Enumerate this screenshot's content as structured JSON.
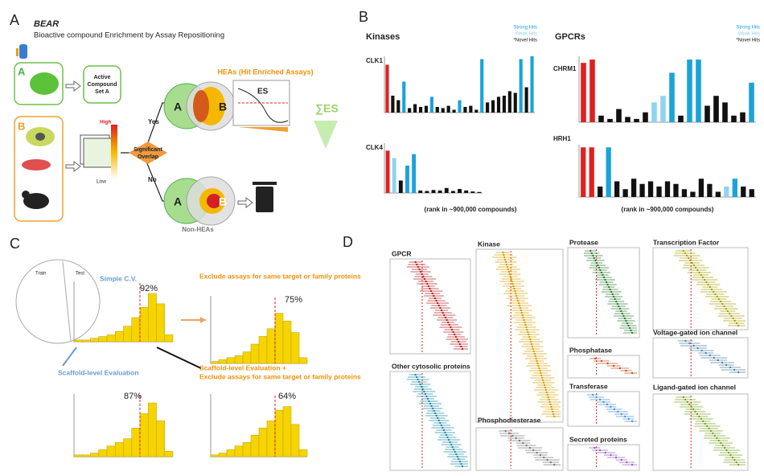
{
  "panels": {
    "a": {
      "label": "A",
      "logo": "BEAR",
      "subtitle": "Bioactive compound Enrichment by Assay Repositioning",
      "box_a": "A",
      "box_b": "B",
      "active_set": [
        "Active",
        "Compound",
        "Set A"
      ],
      "high": "High",
      "low": "Low",
      "overlap": [
        "Significant",
        "Overlap"
      ],
      "yes": "Yes",
      "no": "No",
      "hea_title": "HEAs (Hit Enriched Assays)",
      "venn1": [
        "A",
        "B"
      ],
      "es": "ES",
      "sum_es": "∑ES",
      "venn2": [
        "A",
        "B"
      ],
      "non_heas": "Non-HEAs"
    },
    "b": {
      "label": "B",
      "kinases": "Kinases",
      "gpcrs": "GPCRs",
      "legend": [
        {
          "name": "Strong Hits",
          "color": "#1aa3d9"
        },
        {
          "name": "Weak Hits",
          "color": "#8fd3f0"
        },
        {
          "name": "*Novel Hits",
          "color": "#111111"
        }
      ],
      "legend2": [
        "Strong Hits",
        "Weak Hits",
        "*Novel Hits"
      ],
      "rank": "(rank in ~900,000 compounds)",
      "rank2": "(rank in ~900,000 compounds)",
      "plots": [
        {
          "name": "CLK1",
          "ylim": [
            0,
            1
          ],
          "values": [
            0.85,
            0.3,
            0.22,
            0.55,
            0.08,
            0.15,
            0.1,
            0.12,
            0.28,
            0.1,
            0.08,
            0.12,
            0.05,
            0.22,
            0.1,
            0.12,
            0.05,
            0.95,
            0.18,
            0.22,
            0.28,
            0.3,
            0.38,
            0.35,
            0.95,
            0.45,
            1.0
          ],
          "colors": [
            "#e02020",
            "#111",
            "#111",
            "#1aa3d9",
            "#111",
            "#111",
            "#111",
            "#111",
            "#1aa3d9",
            "#111",
            "#111",
            "#111",
            "#111",
            "#1aa3d9",
            "#111",
            "#111",
            "#111",
            "#1aa3d9",
            "#111",
            "#111",
            "#111",
            "#111",
            "#111",
            "#111",
            "#1aa3d9",
            "#111",
            "#1aa3d9"
          ]
        },
        {
          "name": "CLK4",
          "ylim": [
            0,
            1
          ],
          "values": [
            0.85,
            0.7,
            0.25,
            0.55,
            0.78,
            0.05,
            0.04,
            0.06,
            0.05,
            0.1,
            0.04,
            0.08,
            0.05,
            0.03,
            0.02
          ],
          "colors": [
            "#e02020",
            "#8fd3f0",
            "#111",
            "#1aa3d9",
            "#1aa3d9",
            "#111",
            "#111",
            "#111",
            "#111",
            "#111",
            "#111",
            "#111",
            "#111",
            "#111",
            "#111"
          ]
        },
        {
          "name": "CHRM1",
          "ylim": [
            0,
            1
          ],
          "values": [
            0.9,
            0.95,
            0.1,
            0.05,
            0.2,
            0.08,
            0.05,
            0.15,
            0.3,
            0.4,
            0.75,
            0.1,
            0.95,
            0.95,
            0.25,
            0.4,
            0.3,
            0.1,
            0.15,
            0.6
          ],
          "colors": [
            "#e02020",
            "#e02020",
            "#111",
            "#111",
            "#111",
            "#111",
            "#111",
            "#111",
            "#8fd3f0",
            "#8fd3f0",
            "#1aa3d9",
            "#111",
            "#1aa3d9",
            "#1aa3d9",
            "#111",
            "#111",
            "#111",
            "#111",
            "#111",
            "#1aa3d9"
          ]
        },
        {
          "name": "HRH1",
          "ylim": [
            0,
            1
          ],
          "values": [
            0.95,
            0.95,
            0.2,
            0.95,
            0.3,
            0.15,
            0.35,
            0.25,
            0.3,
            0.2,
            0.3,
            0.25,
            0.15,
            0.1,
            0.35,
            0.25,
            0.1,
            0.2,
            0.35,
            0.2,
            0.15
          ],
          "colors": [
            "#e02020",
            "#e02020",
            "#111",
            "#1aa3d9",
            "#111",
            "#111",
            "#111",
            "#111",
            "#111",
            "#111",
            "#111",
            "#111",
            "#111",
            "#111",
            "#111",
            "#111",
            "#111",
            "#8fd3f0",
            "#1aa3d9",
            "#111",
            "#111"
          ]
        }
      ]
    },
    "c": {
      "label": "C",
      "train": "Train",
      "test": "Test",
      "simple_cv": "Simple C.V.",
      "exclude": "Exclude assays for same target or family proteins",
      "scaffold": "Scaffold-level Evaluation",
      "scaffold_exclude": [
        "Scaffold-level Evaluation +",
        "Exclude assays for same target or family proteins"
      ],
      "hists": [
        {
          "pct": "92%",
          "color": "#f5d400",
          "ylim": [
            0,
            35
          ],
          "values": [
            1,
            1,
            2,
            3,
            4,
            6,
            9,
            14,
            20,
            28,
            22,
            4
          ]
        },
        {
          "pct": "75%",
          "color": "#f5d400",
          "ylim": [
            0,
            35
          ],
          "values": [
            1,
            2,
            3,
            4,
            6,
            10,
            14,
            18,
            26,
            22,
            16,
            3
          ]
        },
        {
          "pct": "87%",
          "color": "#f5d400",
          "ylim": [
            0,
            35
          ],
          "values": [
            1,
            1,
            2,
            4,
            6,
            8,
            10,
            16,
            24,
            30,
            20,
            3
          ]
        },
        {
          "pct": "64%",
          "color": "#f5d400",
          "ylim": [
            0,
            35
          ],
          "values": [
            1,
            2,
            4,
            6,
            8,
            12,
            16,
            20,
            26,
            28,
            18,
            4
          ]
        }
      ]
    },
    "d": {
      "label": "D",
      "gpcr": "GPCR",
      "kinase": "Kinase",
      "protease": "Protease",
      "tf": "Transcription Factor",
      "vg": "Voltage-gated ion channel",
      "phosphatase": "Phosphatase",
      "lg": "Ligand-gated ion channel",
      "transferase": "Transferase",
      "cytosolic": "Other cytosolic proteins",
      "pde": "Phosphodiesterase",
      "secreted": "Secreted proteins"
    }
  }
}
